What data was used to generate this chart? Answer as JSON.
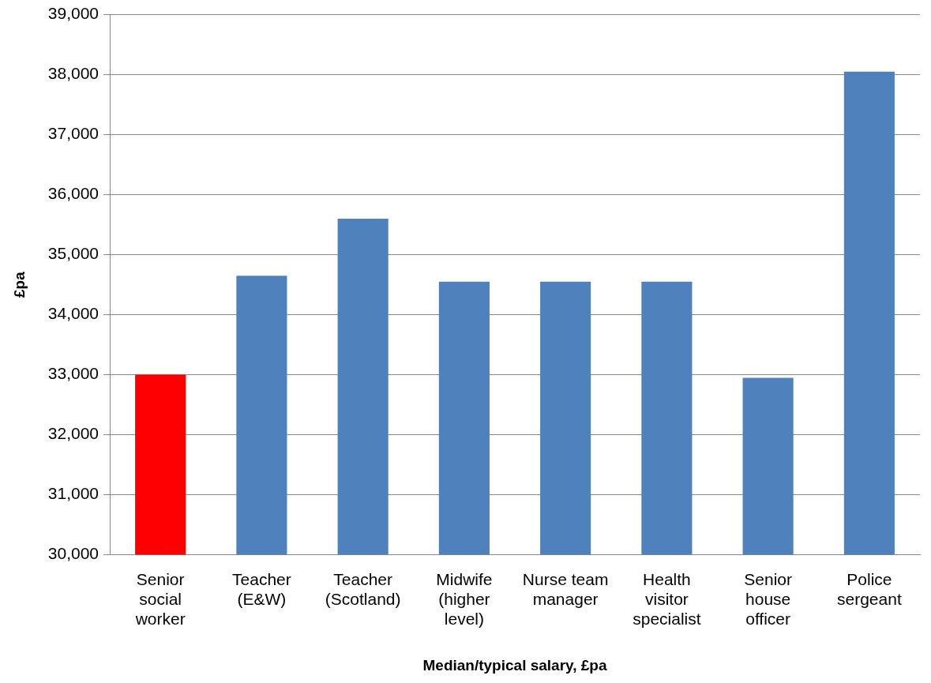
{
  "chart_data": {
    "type": "bar",
    "xlabel": "Median/typical salary, £pa",
    "ylabel": "£pa",
    "categories": [
      "Senior social worker",
      "Teacher (E&W)",
      "Teacher (Scotland)",
      "Midwife (higher level)",
      "Nurse team manager",
      "Health visitor specialist",
      "Senior house officer",
      "Police sergeant"
    ],
    "values": [
      33000,
      34650,
      35600,
      34550,
      34550,
      34550,
      32950,
      38050
    ],
    "colors": [
      "#ff0000",
      "#4f81bd",
      "#4f81bd",
      "#4f81bd",
      "#4f81bd",
      "#4f81bd",
      "#4f81bd",
      "#4f81bd"
    ],
    "ylim": [
      30000,
      39000
    ],
    "yticks": [
      {
        "value": 30000,
        "label": "30,000"
      },
      {
        "value": 31000,
        "label": "31,000"
      },
      {
        "value": 32000,
        "label": "32,000"
      },
      {
        "value": 33000,
        "label": "33,000"
      },
      {
        "value": 34000,
        "label": "34,000"
      },
      {
        "value": 35000,
        "label": "35,000"
      },
      {
        "value": 36000,
        "label": "36,000"
      },
      {
        "value": 37000,
        "label": "37,000"
      },
      {
        "value": 38000,
        "label": "38,000"
      },
      {
        "value": 39000,
        "label": "39,000"
      }
    ],
    "grid": "y",
    "legend": false
  }
}
